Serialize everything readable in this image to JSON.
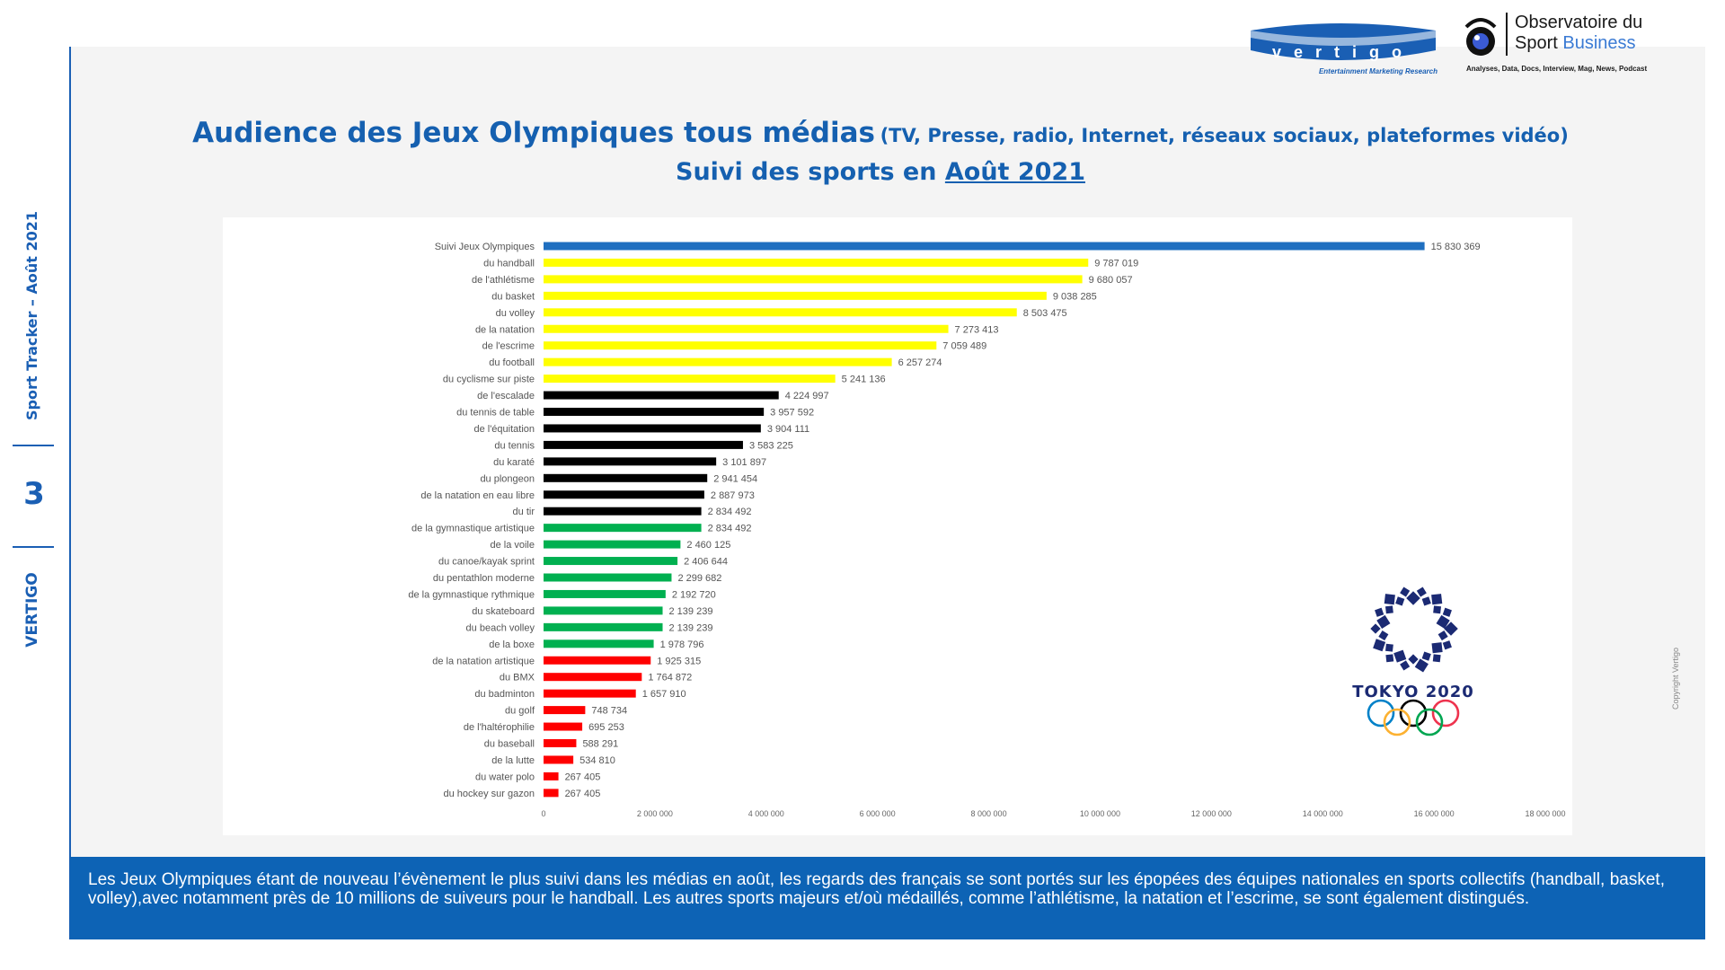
{
  "sidebar": {
    "section_label": "Sport Tracker – Août 2021",
    "page_number": "3",
    "brand_label": "VERTIGO"
  },
  "logos": {
    "vertigo": {
      "wordmark": "vertigo",
      "tagline": "Entertainment Marketing Research"
    },
    "osb": {
      "line1": "Observatoire du",
      "line2a": "Sport",
      "line2b": "Business",
      "tagline": "Analyses, Data, Docs, Interview, Mag, News, Podcast"
    }
  },
  "header": {
    "title": "Audience des Jeux Olympiques tous médias",
    "title_paren": "(TV, Presse, radio, Internet, réseaux sociaux, plateformes vidéo)",
    "subtitle_prefix": "Suivi des sports en",
    "subtitle_period": "Août 2021"
  },
  "caption": "Les Jeux Olympiques étant de nouveau l’évènement le plus suivi dans les médias en août, les regards des français se sont portés sur les épopées des équipes nationales en sports collectifs (handball, basket, volley),avec notamment près de 10 millions de suiveurs pour le handball. Les autres sports majeurs et/où médaillés, comme l’athlétisme, la natation et l’escrime, se sont également distingués.",
  "copyright": "Copyright Vertigo",
  "olympic_logo": {
    "text": "TOKYO 2020"
  },
  "colors": {
    "blue": "#1f6fc0",
    "yellow": "#ffff00",
    "black": "#000000",
    "green": "#00b050",
    "red": "#ff0000",
    "title": "#1560b0",
    "caption_bg": "#0d63b5"
  },
  "chart_data": {
    "type": "bar",
    "orientation": "horizontal",
    "xlim": [
      0,
      18000000
    ],
    "x_ticks": [
      "0",
      "2 000 000",
      "4 000 000",
      "6 000 000",
      "8 000 000",
      "10 000 000",
      "12 000 000",
      "14 000 000",
      "16 000 000",
      "18 000 000"
    ],
    "grid": false,
    "categories": [
      "Suivi Jeux Olympiques",
      "du handball",
      "de l'athlétisme",
      "du basket",
      "du volley",
      "de la natation",
      "de l'escrime",
      "du football",
      "du cyclisme sur piste",
      "de l'escalade",
      "du tennis de table",
      "de l'équitation",
      "du tennis",
      "du karaté",
      "du plongeon",
      "de la natation en eau libre",
      "du tir",
      "de la gymnastique artistique",
      "de la voile",
      "du canoe/kayak sprint",
      "du pentathlon moderne",
      "de la gymnastique rythmique",
      "du skateboard",
      "du beach volley",
      "de la boxe",
      "de la natation artistique",
      "du BMX",
      "du badminton",
      "du golf",
      "de l'haltérophilie",
      "du baseball",
      "de la lutte",
      "du water polo",
      "du hockey sur gazon"
    ],
    "values": [
      15830369,
      9787019,
      9680057,
      9038285,
      8503475,
      7273413,
      7059489,
      6257274,
      5241136,
      4224997,
      3957592,
      3904111,
      3583225,
      3101897,
      2941454,
      2887973,
      2834492,
      2834492,
      2460125,
      2406644,
      2299682,
      2192720,
      2139239,
      2139239,
      1978796,
      1925315,
      1764872,
      1657910,
      748734,
      695253,
      588291,
      534810,
      267405,
      267405
    ],
    "value_labels": [
      "15 830 369",
      "9 787 019",
      "9 680 057",
      "9 038 285",
      "8 503 475",
      "7 273 413",
      "7 059 489",
      "6 257 274",
      "5 241 136",
      "4 224 997",
      "3 957 592",
      "3 904 111",
      "3 583 225",
      "3 101 897",
      "2 941 454",
      "2 887 973",
      "2 834 492",
      "2 834 492",
      "2 460 125",
      "2 406 644",
      "2 299 682",
      "2 192 720",
      "2 139 239",
      "2 139 239",
      "1 978 796",
      "1 925 315",
      "1 764 872",
      "1 657 910",
      "748 734",
      "695 253",
      "588 291",
      "534 810",
      "267 405",
      "267 405"
    ],
    "bar_colors": [
      "#1f6fc0",
      "#ffff00",
      "#ffff00",
      "#ffff00",
      "#ffff00",
      "#ffff00",
      "#ffff00",
      "#ffff00",
      "#ffff00",
      "#000000",
      "#000000",
      "#000000",
      "#000000",
      "#000000",
      "#000000",
      "#000000",
      "#000000",
      "#00b050",
      "#00b050",
      "#00b050",
      "#00b050",
      "#00b050",
      "#00b050",
      "#00b050",
      "#00b050",
      "#ff0000",
      "#ff0000",
      "#ff0000",
      "#ff0000",
      "#ff0000",
      "#ff0000",
      "#ff0000",
      "#ff0000",
      "#ff0000"
    ]
  }
}
